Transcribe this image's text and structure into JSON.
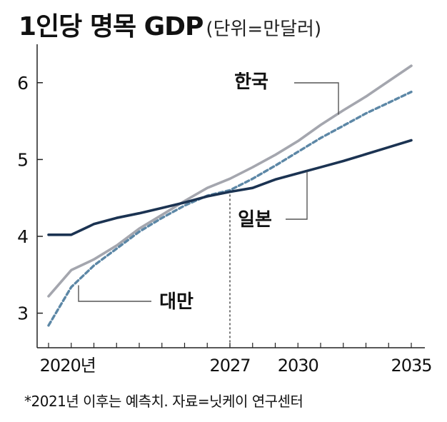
{
  "title": "1인당 명목 GDP",
  "unit": "(단위=만달러)",
  "footnote": "*2021년 이후는 예측치. 자료=닛케이 연구센터",
  "chart_data": {
    "type": "line",
    "title": "1인당 명목 GDP",
    "ylabel": "(단위=만달러)",
    "xlim": [
      2019,
      2035
    ],
    "ylim": [
      2.55,
      6.5
    ],
    "yticks": [
      3,
      4,
      5,
      6
    ],
    "xticks": [
      {
        "value": 2020,
        "label": "2020년"
      },
      {
        "value": 2027,
        "label": "2027"
      },
      {
        "value": 2030,
        "label": "2030"
      },
      {
        "value": 2035,
        "label": "2035"
      }
    ],
    "vline": 2027,
    "series": [
      {
        "name": "한국",
        "color": "#a4a6ae",
        "style": "solid",
        "x": [
          2019,
          2020,
          2021,
          2022,
          2023,
          2024,
          2025,
          2026,
          2027,
          2028,
          2029,
          2030,
          2031,
          2032,
          2033,
          2034,
          2035
        ],
        "y": [
          3.22,
          3.56,
          3.7,
          3.88,
          4.1,
          4.28,
          4.46,
          4.63,
          4.75,
          4.9,
          5.06,
          5.24,
          5.45,
          5.64,
          5.82,
          6.02,
          6.22
        ]
      },
      {
        "name": "대만",
        "color": "#5c87a6",
        "style": "dashed",
        "x": [
          2019,
          2020,
          2021,
          2022,
          2023,
          2024,
          2025,
          2026,
          2027,
          2028,
          2029,
          2030,
          2031,
          2032,
          2033,
          2034,
          2035
        ],
        "y": [
          2.84,
          3.34,
          3.62,
          3.84,
          4.06,
          4.24,
          4.4,
          4.53,
          4.6,
          4.75,
          4.92,
          5.1,
          5.28,
          5.44,
          5.6,
          5.74,
          5.88
        ]
      },
      {
        "name": "일본",
        "color": "#1b3352",
        "style": "solid",
        "x": [
          2019,
          2020,
          2021,
          2022,
          2023,
          2024,
          2025,
          2026,
          2027,
          2028,
          2029,
          2030,
          2031,
          2032,
          2033,
          2034,
          2035
        ],
        "y": [
          4.02,
          4.02,
          4.16,
          4.24,
          4.3,
          4.37,
          4.44,
          4.52,
          4.58,
          4.63,
          4.74,
          4.82,
          4.9,
          4.98,
          5.07,
          5.16,
          5.25
        ]
      }
    ]
  }
}
